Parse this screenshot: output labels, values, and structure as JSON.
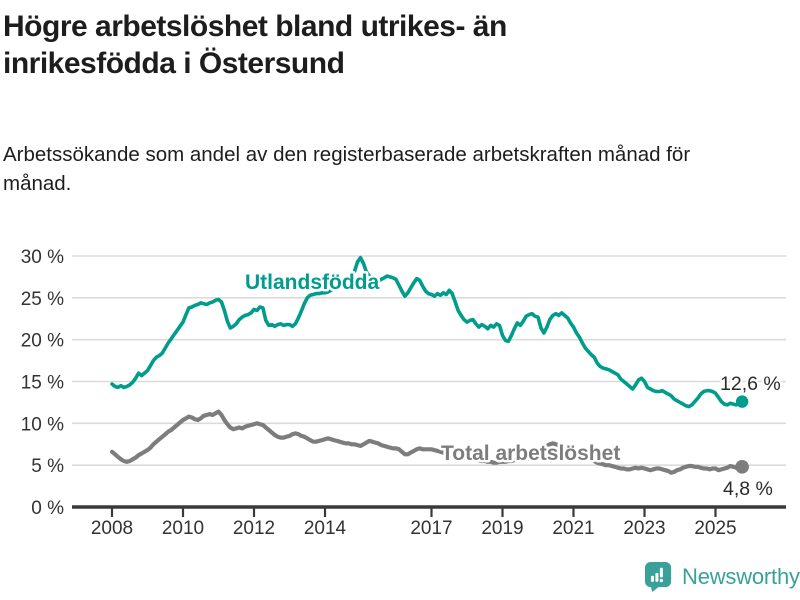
{
  "header": {
    "title_lines": [
      "Högre arbetslöshet bland utrikes- än",
      "inrikesfödda i Östersund"
    ],
    "subtitle": "Arbetssökande som andel av den registerbaserade arbetskraften månad för månad."
  },
  "footer": {
    "brand": "Newsworthy",
    "brand_color": "#3aa19a",
    "logo_icon": "bar-chart-speech-bubble"
  },
  "colors": {
    "title_text": "#1d1d1d",
    "axis_text": "#333333",
    "axis_line": "#3a3a3a",
    "gridline": "#dbdbdb",
    "background": "#ffffff"
  },
  "chart_data": {
    "type": "line",
    "unit": "%",
    "grid": "horizontal",
    "legend": "inline-labels",
    "start_month": "2008-01",
    "end_month": "2025-10",
    "x_axis": {
      "tick_years": [
        2008,
        2010,
        2012,
        2014,
        2017,
        2019,
        2021,
        2023,
        2025
      ],
      "tick_labels": [
        "2008",
        "2010",
        "2012",
        "2014",
        "2017",
        "2019",
        "2021",
        "2023",
        "2025"
      ],
      "range_years": [
        2007.9,
        2026.2
      ]
    },
    "y_axis": {
      "ticks": [
        0,
        5,
        10,
        15,
        20,
        25,
        30
      ],
      "tick_labels": [
        "0 %",
        "5 %",
        "10 %",
        "15 %",
        "20 %",
        "25 %",
        "30 %"
      ],
      "range": [
        0,
        30
      ]
    },
    "series": [
      {
        "name": "Utlandsfödda",
        "color": "#009c8c",
        "end_label": "12,6 %",
        "end_value": 12.6,
        "values": [
          14.7,
          14.4,
          14.3,
          14.5,
          14.3,
          14.4,
          14.6,
          14.9,
          15.4,
          16.0,
          15.7,
          16.0,
          16.3,
          16.9,
          17.5,
          17.9,
          18.1,
          18.4,
          19.0,
          19.6,
          20.1,
          20.6,
          21.1,
          21.6,
          22.1,
          23.0,
          23.8,
          23.9,
          24.1,
          24.2,
          24.4,
          24.3,
          24.2,
          24.4,
          24.5,
          24.7,
          24.8,
          24.5,
          23.5,
          22.2,
          21.4,
          21.6,
          21.9,
          22.4,
          22.7,
          22.9,
          23.0,
          23.2,
          23.6,
          23.5,
          23.9,
          23.8,
          22.3,
          21.7,
          21.8,
          21.6,
          21.8,
          21.9,
          21.7,
          21.8,
          21.8,
          21.6,
          21.9,
          22.6,
          23.4,
          24.3,
          25.0,
          25.3,
          25.4,
          25.5,
          25.5,
          25.6,
          25.6,
          25.7,
          25.9,
          26.1,
          26.0,
          26.3,
          26.5,
          26.4,
          26.7,
          27.2,
          28.2,
          29.3,
          29.8,
          29.1,
          28.1,
          27.6,
          27.3,
          27.1,
          27.0,
          27.2,
          27.4,
          27.6,
          27.5,
          27.4,
          27.2,
          26.5,
          25.8,
          25.2,
          25.6,
          26.2,
          26.8,
          27.3,
          27.1,
          26.4,
          25.8,
          25.5,
          25.4,
          25.2,
          25.5,
          25.3,
          25.6,
          25.4,
          25.9,
          25.5,
          24.5,
          23.5,
          22.9,
          22.4,
          22.1,
          22.3,
          22.4,
          21.9,
          21.5,
          21.8,
          21.6,
          21.3,
          21.7,
          21.5,
          21.9,
          21.7,
          20.5,
          19.9,
          19.8,
          20.5,
          21.3,
          22.0,
          21.7,
          22.2,
          22.8,
          23.0,
          23.1,
          22.8,
          22.7,
          21.4,
          20.8,
          21.5,
          22.4,
          22.9,
          23.1,
          22.9,
          23.2,
          22.9,
          22.6,
          22.0,
          21.5,
          20.8,
          20.3,
          19.6,
          19.0,
          18.6,
          18.2,
          17.9,
          17.2,
          16.8,
          16.6,
          16.5,
          16.4,
          16.2,
          16.0,
          15.8,
          15.3,
          15.0,
          14.7,
          14.4,
          14.1,
          14.6,
          15.2,
          15.4,
          15.0,
          14.3,
          14.1,
          13.9,
          13.8,
          13.8,
          13.9,
          13.7,
          13.5,
          13.3,
          12.9,
          12.7,
          12.5,
          12.3,
          12.1,
          12.0,
          12.2,
          12.6,
          13.0,
          13.5,
          13.8,
          13.9,
          13.9,
          13.8,
          13.6,
          13.1,
          12.6,
          12.3,
          12.2,
          12.4,
          12.3,
          12.2,
          12.4,
          12.6
        ]
      },
      {
        "name": "Total arbetslöshet",
        "color": "#7d7d7d",
        "end_label": "4,8 %",
        "end_value": 4.8,
        "values": [
          6.6,
          6.3,
          6.0,
          5.7,
          5.5,
          5.4,
          5.5,
          5.7,
          5.9,
          6.2,
          6.4,
          6.6,
          6.8,
          7.1,
          7.5,
          7.8,
          8.1,
          8.4,
          8.7,
          9.0,
          9.2,
          9.5,
          9.8,
          10.1,
          10.4,
          10.6,
          10.8,
          10.7,
          10.5,
          10.4,
          10.6,
          10.9,
          11.0,
          11.1,
          11.0,
          11.2,
          11.4,
          11.0,
          10.4,
          9.9,
          9.5,
          9.3,
          9.4,
          9.5,
          9.4,
          9.6,
          9.7,
          9.8,
          9.9,
          10.0,
          9.9,
          9.8,
          9.5,
          9.2,
          8.9,
          8.6,
          8.4,
          8.3,
          8.3,
          8.4,
          8.5,
          8.7,
          8.8,
          8.7,
          8.5,
          8.4,
          8.2,
          8.0,
          7.8,
          7.8,
          7.9,
          8.0,
          8.1,
          8.2,
          8.1,
          8.0,
          7.9,
          7.8,
          7.7,
          7.6,
          7.6,
          7.5,
          7.5,
          7.4,
          7.3,
          7.5,
          7.7,
          7.9,
          7.8,
          7.7,
          7.6,
          7.4,
          7.3,
          7.2,
          7.1,
          7.0,
          7.0,
          6.9,
          6.6,
          6.3,
          6.3,
          6.5,
          6.7,
          6.9,
          7.0,
          6.9,
          6.9,
          6.9,
          6.9,
          6.8,
          6.7,
          6.6,
          6.5,
          6.4,
          6.3,
          6.2,
          6.1,
          6.0,
          6.0,
          6.0,
          5.9,
          5.8,
          5.7,
          5.6,
          5.6,
          5.5,
          5.5,
          5.4,
          5.4,
          5.3,
          5.3,
          5.4,
          5.4,
          5.4,
          5.5,
          5.5,
          5.6,
          5.6,
          5.7,
          5.7,
          5.8,
          5.8,
          5.9,
          6.0,
          6.1,
          6.3,
          6.8,
          7.3,
          7.5,
          7.6,
          7.5,
          7.4,
          7.2,
          7.0,
          6.8,
          6.7,
          6.6,
          6.5,
          6.4,
          6.2,
          6.0,
          5.8,
          5.6,
          5.5,
          5.3,
          5.2,
          5.1,
          5.0,
          5.0,
          4.9,
          4.8,
          4.7,
          4.6,
          4.6,
          4.5,
          4.5,
          4.6,
          4.7,
          4.6,
          4.7,
          4.6,
          4.5,
          4.4,
          4.5,
          4.6,
          4.6,
          4.5,
          4.4,
          4.3,
          4.1,
          4.2,
          4.4,
          4.5,
          4.7,
          4.8,
          4.9,
          4.9,
          4.8,
          4.8,
          4.7,
          4.6,
          4.6,
          4.5,
          4.6,
          4.6,
          4.4,
          4.5,
          4.6,
          4.7,
          4.9,
          4.8,
          4.7,
          4.8,
          4.8
        ]
      }
    ]
  }
}
